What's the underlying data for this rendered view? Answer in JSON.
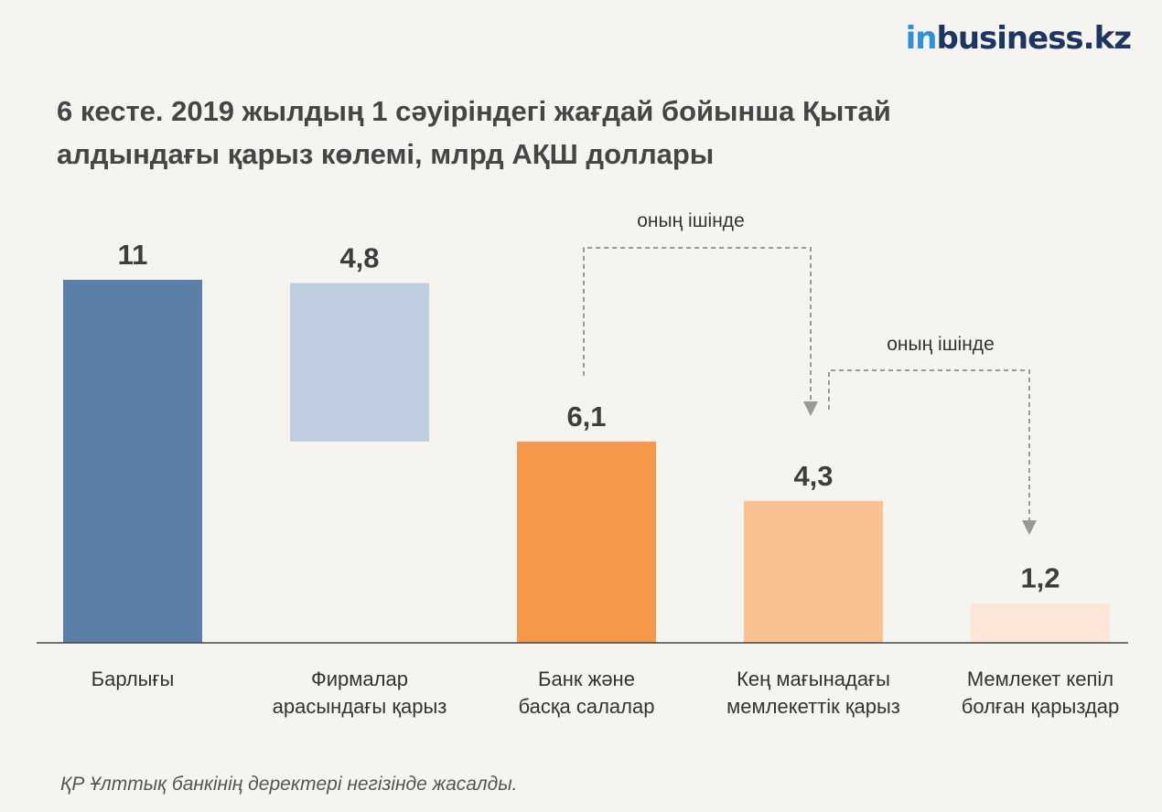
{
  "logo": {
    "prefix": "in",
    "text": "business.kz"
  },
  "title_lines": [
    "6 кесте. 2019 жылдың 1 сәуіріндегі жағдай бойынша Қытай",
    "алдындағы қарыз көлемі, млрд АҚШ доллары"
  ],
  "source": "ҚР Ұлттық банкінің деректері негізінде жасалды.",
  "colors": {
    "total": "#5b80a8",
    "interfirm": "#bfcde0",
    "banks": "#f6984a",
    "public_broad": "#f9c190",
    "guaranteed": "#fce6d8",
    "axis": "#444444",
    "arrow": "#999999"
  },
  "chart_data": {
    "type": "bar",
    "title": "6 кесте. 2019 жылдың 1 сәуіріндегі жағдай бойынша Қытай алдындағы қарыз көлемі, млрд АҚШ доллары",
    "unit": "млрд АҚШ доллары",
    "style": "waterfall",
    "categories": [
      [
        "Барлығы"
      ],
      [
        "Фирмалар",
        "арасындағы қарыз"
      ],
      [
        "Банк және",
        "басқа салалар"
      ],
      [
        "Кең мағынадағы",
        "мемлекеттік қарыз"
      ],
      [
        "Мемлекет кепіл",
        "болған қарыздар"
      ]
    ],
    "values": [
      11,
      4.8,
      6.1,
      4.3,
      1.2
    ],
    "value_labels": [
      "11",
      "4,8",
      "6,1",
      "4,3",
      "1,2"
    ],
    "bar_base": [
      0,
      6.1,
      0,
      0,
      0
    ],
    "color_keys": [
      "total",
      "interfirm",
      "banks",
      "public_broad",
      "guaranteed"
    ],
    "ylim": [
      0,
      11
    ],
    "grid": false,
    "legend": "none",
    "annotations": [
      {
        "text": "оның ішінде",
        "from_index": 2,
        "to_index": 3
      },
      {
        "text": "оның ішінде",
        "from_index": 3,
        "to_index": 4
      }
    ]
  }
}
